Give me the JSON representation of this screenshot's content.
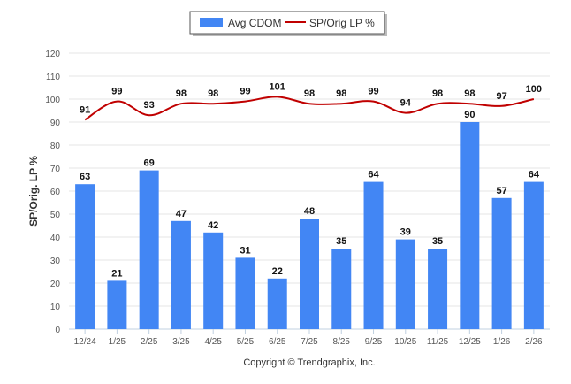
{
  "chart_data": {
    "type": "bar",
    "categories": [
      "12/24",
      "1/25",
      "2/25",
      "3/25",
      "4/25",
      "5/25",
      "6/25",
      "7/25",
      "8/25",
      "9/25",
      "10/25",
      "11/25",
      "12/25",
      "1/26",
      "2/26"
    ],
    "series": [
      {
        "name": "Avg CDOM",
        "type": "bar",
        "color": "#4286f4",
        "values": [
          63,
          21,
          69,
          47,
          42,
          31,
          22,
          48,
          35,
          64,
          39,
          35,
          90,
          57,
          64
        ]
      },
      {
        "name": "SP/Orig LP %",
        "type": "line",
        "color": "#c00000",
        "values": [
          91,
          99,
          93,
          98,
          98,
          99,
          101,
          98,
          98,
          99,
          94,
          98,
          98,
          97,
          100
        ]
      }
    ],
    "ylabel": "SP/Orig. LP %",
    "xlabel": "",
    "ylim": [
      0,
      120
    ],
    "yticks": [
      0,
      10,
      20,
      30,
      40,
      50,
      60,
      70,
      80,
      90,
      100,
      110,
      120
    ],
    "legend_position": "top-center",
    "grid": true
  },
  "footer": {
    "copyright": "Copyright © Trendgraphix, Inc."
  }
}
